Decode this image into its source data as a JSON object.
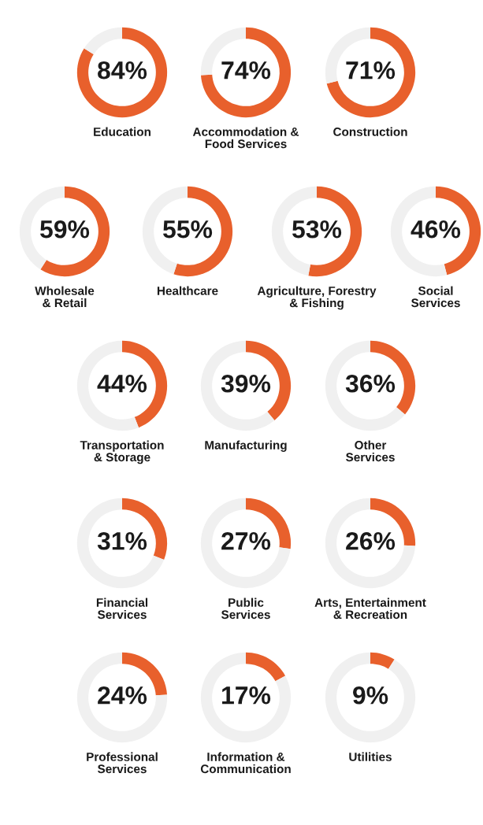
{
  "chart_data": [
    {
      "type": "donut",
      "title": "Education",
      "categories": [
        null,
        null
      ],
      "values": [
        84,
        16
      ],
      "colors": [
        "#e8602c",
        "#f0f0f0"
      ],
      "value_labels": [
        "84%",
        null
      ]
    },
    {
      "type": "donut",
      "title": "Accommodation &\nFood Services",
      "categories": [
        null,
        null
      ],
      "values": [
        74,
        26
      ],
      "colors": [
        "#e8602c",
        "#f0f0f0"
      ],
      "value_labels": [
        "74%",
        null
      ]
    },
    {
      "type": "donut",
      "title": "Construction",
      "categories": [
        null,
        null
      ],
      "values": [
        71,
        29
      ],
      "colors": [
        "#e8602c",
        "#f0f0f0"
      ],
      "value_labels": [
        "71%",
        null
      ]
    },
    {
      "type": "donut",
      "title": "Wholesale\n& Retail",
      "categories": [
        null,
        null
      ],
      "values": [
        59,
        41
      ],
      "colors": [
        "#e8602c",
        "#f0f0f0"
      ],
      "value_labels": [
        "59%",
        null
      ]
    },
    {
      "type": "donut",
      "title": "Healthcare",
      "categories": [
        null,
        null
      ],
      "values": [
        55,
        45
      ],
      "colors": [
        "#e8602c",
        "#f0f0f0"
      ],
      "value_labels": [
        "55%",
        null
      ]
    },
    {
      "type": "donut",
      "title": "Agriculture, Forestry\n& Fishing",
      "categories": [
        null,
        null
      ],
      "values": [
        53,
        47
      ],
      "colors": [
        "#e8602c",
        "#f0f0f0"
      ],
      "value_labels": [
        "53%",
        null
      ]
    },
    {
      "type": "donut",
      "title": "Social\nServices",
      "categories": [
        null,
        null
      ],
      "values": [
        46,
        54
      ],
      "colors": [
        "#e8602c",
        "#f0f0f0"
      ],
      "value_labels": [
        "46%",
        null
      ]
    },
    {
      "type": "donut",
      "title": "Transportation\n& Storage",
      "categories": [
        null,
        null
      ],
      "values": [
        44,
        56
      ],
      "colors": [
        "#e8602c",
        "#f0f0f0"
      ],
      "value_labels": [
        "44%",
        null
      ]
    },
    {
      "type": "donut",
      "title": "Manufacturing",
      "categories": [
        null,
        null
      ],
      "values": [
        39,
        61
      ],
      "colors": [
        "#e8602c",
        "#f0f0f0"
      ],
      "value_labels": [
        "39%",
        null
      ]
    },
    {
      "type": "donut",
      "title": "Other\nServices",
      "categories": [
        null,
        null
      ],
      "values": [
        36,
        64
      ],
      "colors": [
        "#e8602c",
        "#f0f0f0"
      ],
      "value_labels": [
        "36%",
        null
      ]
    },
    {
      "type": "donut",
      "title": "Financial\nServices",
      "categories": [
        null,
        null
      ],
      "values": [
        31,
        69
      ],
      "colors": [
        "#e8602c",
        "#f0f0f0"
      ],
      "value_labels": [
        "31%",
        null
      ]
    },
    {
      "type": "donut",
      "title": "Public\nServices",
      "categories": [
        null,
        null
      ],
      "values": [
        27,
        73
      ],
      "colors": [
        "#e8602c",
        "#f0f0f0"
      ],
      "value_labels": [
        "27%",
        null
      ]
    },
    {
      "type": "donut",
      "title": "Arts, Entertainment\n& Recreation",
      "categories": [
        null,
        null
      ],
      "values": [
        26,
        74
      ],
      "colors": [
        "#e8602c",
        "#f0f0f0"
      ],
      "value_labels": [
        "26%",
        null
      ]
    },
    {
      "type": "donut",
      "title": "Professional\nServices",
      "categories": [
        null,
        null
      ],
      "values": [
        24,
        76
      ],
      "colors": [
        "#e8602c",
        "#f0f0f0"
      ],
      "value_labels": [
        "24%",
        null
      ]
    },
    {
      "type": "donut",
      "title": "Information &\nCommunication",
      "categories": [
        null,
        null
      ],
      "values": [
        17,
        83
      ],
      "colors": [
        "#e8602c",
        "#f0f0f0"
      ],
      "value_labels": [
        "17%",
        null
      ]
    },
    {
      "type": "donut",
      "title": "Utilities",
      "categories": [
        null,
        null
      ],
      "values": [
        9,
        91
      ],
      "colors": [
        "#e8602c",
        "#f0f0f0"
      ],
      "value_labels": [
        "9%",
        null
      ]
    }
  ]
}
